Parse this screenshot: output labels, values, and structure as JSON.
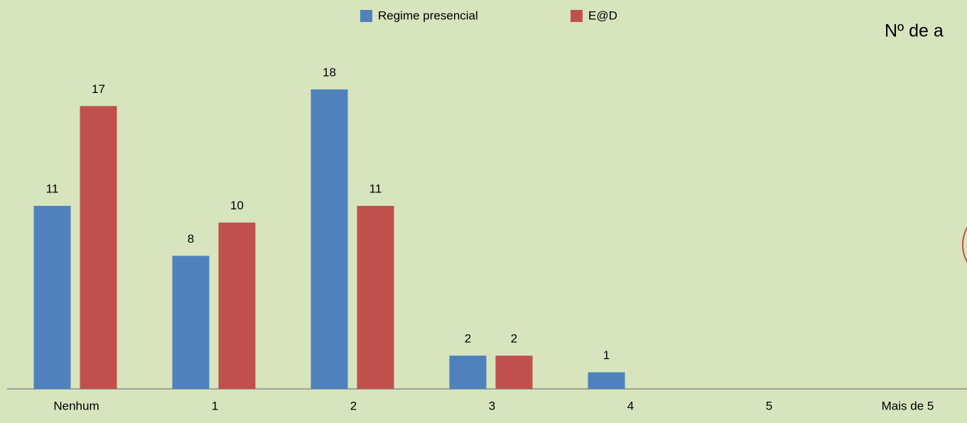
{
  "chart_data": {
    "type": "bar",
    "title": "Nº de a",
    "categories": [
      "Nenhum",
      "1",
      "2",
      "3",
      "4",
      "5",
      "Mais de 5"
    ],
    "series": [
      {
        "name": "Regime presencial",
        "color": "#4f81bd",
        "values": [
          11,
          8,
          18,
          2,
          1,
          null,
          null
        ]
      },
      {
        "name": "E@D",
        "color": "#c0504d",
        "values": [
          17,
          10,
          11,
          2,
          null,
          null,
          null
        ]
      }
    ],
    "ylim": [
      0,
      18
    ],
    "legend": "top"
  }
}
